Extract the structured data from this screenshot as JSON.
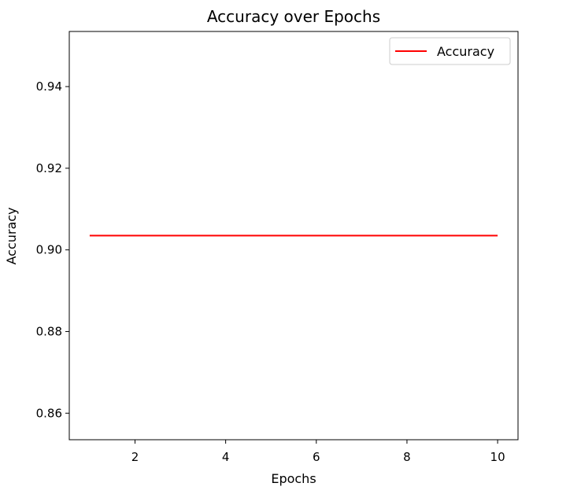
{
  "chart_data": {
    "type": "line",
    "title": "Accuracy over Epochs",
    "xlabel": "Epochs",
    "ylabel": "Accuracy",
    "xlim": [
      0.55,
      10.45
    ],
    "ylim": [
      0.8535,
      0.9535
    ],
    "xticks": [
      2,
      4,
      6,
      8,
      10
    ],
    "xtick_labels": [
      "2",
      "4",
      "6",
      "8",
      "10"
    ],
    "yticks": [
      0.86,
      0.88,
      0.9,
      0.92,
      0.94
    ],
    "ytick_labels": [
      "0.86",
      "0.88",
      "0.90",
      "0.92",
      "0.94"
    ],
    "grid": false,
    "legend_position": "top-right",
    "series": [
      {
        "name": "Accuracy",
        "color": "#ff0000",
        "x": [
          1,
          2,
          3,
          4,
          5,
          6,
          7,
          8,
          9,
          10
        ],
        "y": [
          0.9035,
          0.9035,
          0.9035,
          0.9035,
          0.9035,
          0.9035,
          0.9035,
          0.9035,
          0.9035,
          0.9035
        ]
      }
    ]
  }
}
